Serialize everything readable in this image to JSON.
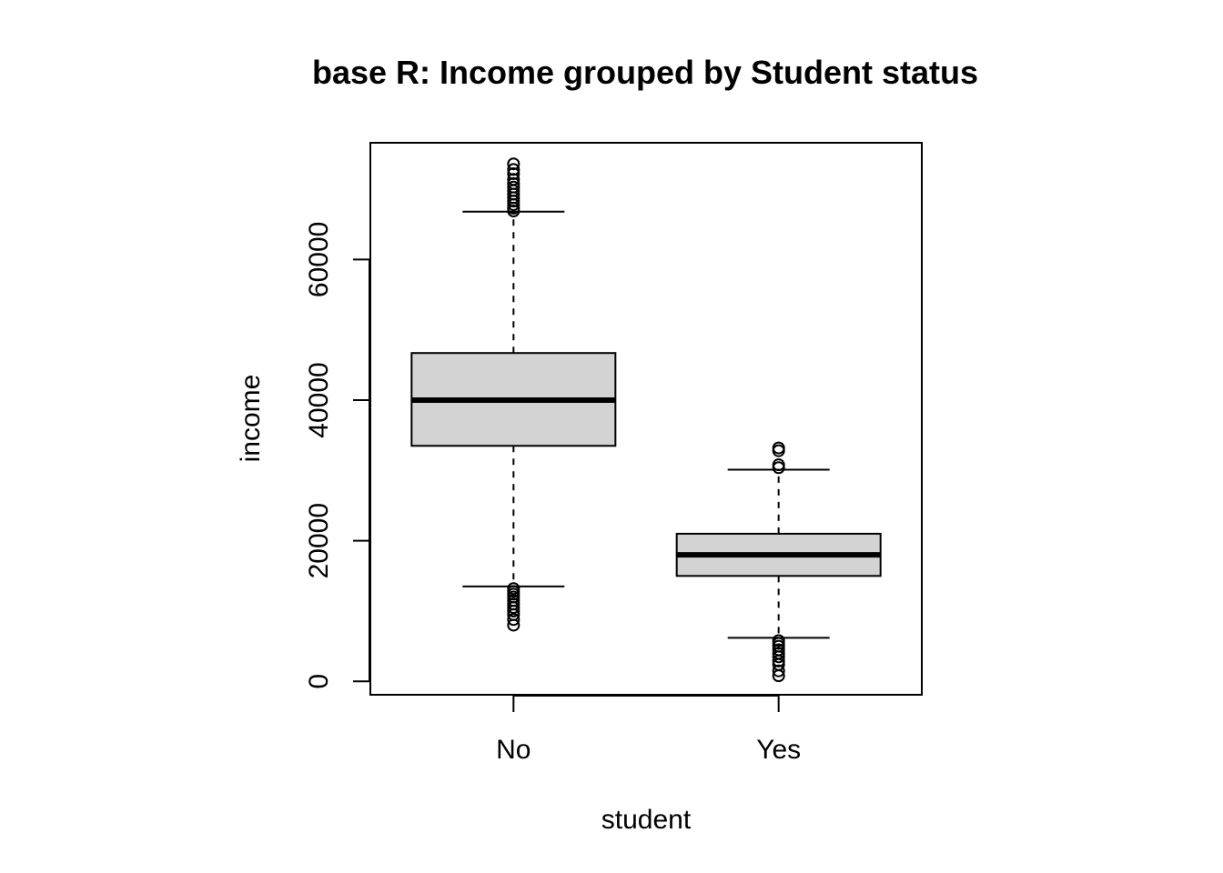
{
  "chart_data": {
    "type": "boxplot",
    "title": "base R: Income grouped by Student status",
    "xlabel": "student",
    "ylabel": "income",
    "categories": [
      "No",
      "Yes"
    ],
    "yticks": [
      0,
      20000,
      40000,
      60000
    ],
    "ylim": [
      -1900,
      76600
    ],
    "grid": false,
    "box_fill": "#d3d3d3",
    "series": [
      {
        "category": "No",
        "lower_whisker": 13500,
        "q1": 33500,
        "median": 40000,
        "q3": 46700,
        "upper_whisker": 66800,
        "outliers": [
          8000,
          8800,
          9500,
          10000,
          10500,
          11000,
          11500,
          12000,
          12400,
          12800,
          13200,
          66900,
          67300,
          67800,
          68300,
          68800,
          69300,
          69800,
          70300,
          70800,
          71400,
          72200,
          72800,
          73600
        ]
      },
      {
        "category": "Yes",
        "lower_whisker": 6200,
        "q1": 15000,
        "median": 18000,
        "q3": 21000,
        "upper_whisker": 30100,
        "outliers": [
          800,
          1500,
          2400,
          2900,
          3500,
          4000,
          4500,
          5000,
          5400,
          5800,
          30400,
          30800,
          32800,
          33200
        ]
      }
    ]
  }
}
